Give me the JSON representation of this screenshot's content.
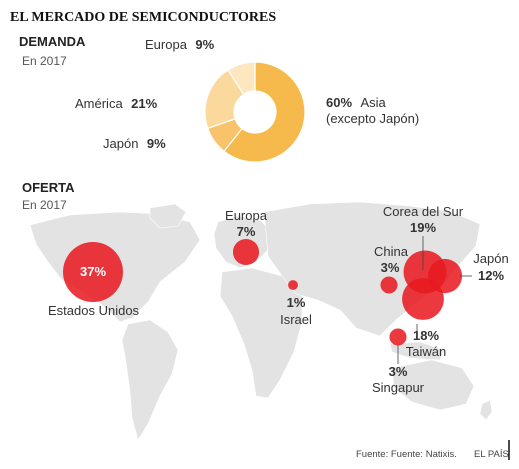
{
  "title": "EL MERCADO DE SEMICONDUCTORES",
  "demand": {
    "heading": "DEMANDA",
    "year": "En 2017"
  },
  "supply": {
    "heading": "OFERTA",
    "year": "En 2017"
  },
  "source": "Fuente: Fuente: Natixis.",
  "brand": "EL PAÍS",
  "colors": {
    "asia": "#f5b94c",
    "america": "#fbd89b",
    "japon": "#f8c36a",
    "europa": "#fde7c1",
    "bubble": "#e8181f",
    "land": "#e3e3e3"
  },
  "chart_data": [
    {
      "type": "pie",
      "slices": [
        {
          "name": "Asia",
          "label": "Asia",
          "label2": "(excepto Japón)",
          "value": 60,
          "display": "60%"
        },
        {
          "name": "Japón",
          "label": "Japón",
          "value": 9,
          "display": "9%"
        },
        {
          "name": "América",
          "label": "América",
          "value": 21,
          "display": "21%"
        },
        {
          "name": "Europa",
          "label": "Europa",
          "value": 9,
          "display": "9%"
        }
      ]
    },
    {
      "type": "scatter",
      "points": [
        {
          "name": "Estados Unidos",
          "label": "Estados Unidos",
          "value": 37,
          "display": "37%"
        },
        {
          "name": "Europa",
          "label": "Europa",
          "value": 7,
          "display": "7%"
        },
        {
          "name": "Israel",
          "label": "Israel",
          "value": 1,
          "display": "1%"
        },
        {
          "name": "China",
          "label": "China",
          "value": 3,
          "display": "3%"
        },
        {
          "name": "Corea del Sur",
          "label": "Corea del Sur",
          "value": 19,
          "display": "19%"
        },
        {
          "name": "Japón",
          "label": "Japón",
          "value": 12,
          "display": "12%"
        },
        {
          "name": "Taiwán",
          "label": "Taiwán",
          "value": 18,
          "display": "18%"
        },
        {
          "name": "Singapur",
          "label": "Singapur",
          "value": 3,
          "display": "3%"
        }
      ]
    }
  ]
}
